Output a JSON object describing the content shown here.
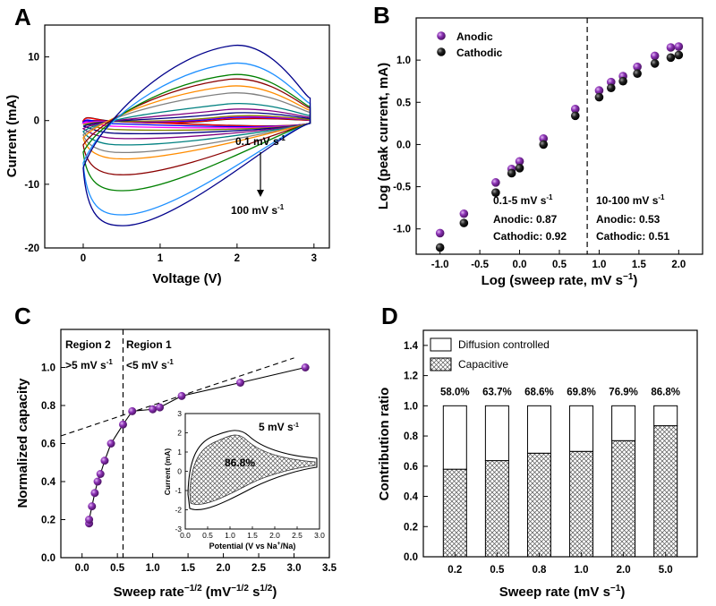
{
  "panels": {
    "A": {
      "letter": "A",
      "xlabel": "Voltage (V)",
      "ylabel": "Current (mA)",
      "annotation_top": "0.1 mV s",
      "annotation_top_sup": "-1",
      "annotation_bottom": "100 mV s",
      "annotation_bottom_sup": "-1"
    },
    "B": {
      "letter": "B",
      "xlabel": "Log (sweep rate, mV s",
      "xlabel_sup": "−1",
      "xlabel_end": ")",
      "ylabel": "Log (peak current, mA)",
      "legend_anodic": "Anodic",
      "legend_cathodic": "Cathodic",
      "note_left_title": "0.1-5 mV s",
      "note_left_title_sup": "-1",
      "note_left_anodic": "Anodic: 0.87",
      "note_left_cathodic": "Cathodic: 0.92",
      "note_right_title": "10-100 mV s",
      "note_right_title_sup": "-1",
      "note_right_anodic": "Anodic: 0.53",
      "note_right_cathodic": "Cathodic: 0.51"
    },
    "C": {
      "letter": "C",
      "xlabel": "Sweep rate",
      "xlabel_sup": "−1/2",
      "xlabel_unit": " (mV",
      "xlabel_unit_sup": "−1/2",
      "xlabel_unit2": " s",
      "xlabel_unit2_sup": "1/2",
      "xlabel_end": ")",
      "ylabel": "Normalized capacity",
      "region2_title": "Region 2",
      "region2_text": ">5 mV s",
      "region2_sup": "-1",
      "region1_title": "Region 1",
      "region1_text": "<5 mV s",
      "region1_sup": "-1",
      "inset_xlabel": "Potential (V vs Na",
      "inset_xlabel_sup": "+",
      "inset_xlabel_end": "/Na)",
      "inset_ylabel": "Current (mA)",
      "inset_rate": "5 mV s",
      "inset_rate_sup": "-1",
      "inset_percent": "86.8%"
    },
    "D": {
      "letter": "D",
      "xlabel": "Sweep rate (mV s",
      "xlabel_sup": "−1",
      "xlabel_end": ")",
      "ylabel": "Contribution ratio",
      "legend_diffusion": "Diffusion controlled",
      "legend_capacitive": "Capacitive"
    }
  },
  "colors": {
    "purple_marker": "#7b2a9e",
    "black_marker": "#111111",
    "hatch": "#555555"
  },
  "chart_data": [
    {
      "panel": "A",
      "type": "line",
      "xlim": [
        -0.5,
        3.2
      ],
      "ylim": [
        -20,
        15
      ],
      "xticks": [
        0,
        1,
        2,
        3
      ],
      "yticks": [
        -20,
        -10,
        0,
        10
      ],
      "series_colors": [
        "#000000",
        "#ff0000",
        "#0000ff",
        "#ff00ff",
        "#808000",
        "#000080",
        "#800080",
        "#008080",
        "#808080",
        "#ff8c00",
        "#8b0000",
        "#008000",
        "#1e90ff",
        "#00008b"
      ],
      "peak_anodic_mA": [
        0.09,
        0.15,
        0.35,
        0.5,
        0.6,
        1.1,
        1.7,
        2.6,
        4.3,
        5.4,
        6.5,
        7.2,
        9.0,
        11.8
      ],
      "peak_cathodic_mA": [
        -0.06,
        -0.12,
        -0.5,
        -0.9,
        -1.4,
        -2.0,
        -2.8,
        -3.8,
        -5.0,
        -6.0,
        -8.5,
        -11.0,
        -14.8,
        -16.5
      ]
    },
    {
      "panel": "B",
      "type": "scatter",
      "xlim": [
        -1.3,
        2.3
      ],
      "ylim": [
        -1.3,
        1.5
      ],
      "xticks": [
        -1.0,
        -0.5,
        0.0,
        0.5,
        1.0,
        1.5,
        2.0
      ],
      "yticks": [
        -1.0,
        -0.5,
        0.0,
        0.5,
        1.0
      ],
      "divider_x": 0.85,
      "series": [
        {
          "name": "Anodic",
          "x": [
            -1.0,
            -0.7,
            -0.3,
            -0.1,
            0.0,
            0.3,
            0.7,
            1.0,
            1.15,
            1.3,
            1.48,
            1.7,
            1.9,
            2.0
          ],
          "y": [
            -1.05,
            -0.82,
            -0.45,
            -0.29,
            -0.2,
            0.07,
            0.42,
            0.64,
            0.74,
            0.81,
            0.92,
            1.05,
            1.15,
            1.16
          ]
        },
        {
          "name": "Cathodic",
          "x": [
            -1.0,
            -0.7,
            -0.3,
            -0.1,
            0.0,
            0.3,
            0.7,
            1.0,
            1.15,
            1.3,
            1.48,
            1.7,
            1.9,
            2.0
          ],
          "y": [
            -1.22,
            -0.93,
            -0.57,
            -0.34,
            -0.28,
            0.0,
            0.34,
            0.56,
            0.67,
            0.75,
            0.84,
            0.96,
            1.03,
            1.06
          ]
        }
      ]
    },
    {
      "panel": "C",
      "type": "scatter",
      "xlim": [
        -0.3,
        3.5
      ],
      "ylim": [
        0.0,
        1.2
      ],
      "xticks": [
        0.0,
        0.5,
        1.0,
        1.5,
        2.0,
        2.5,
        3.0,
        3.5
      ],
      "yticks": [
        0.0,
        0.2,
        0.4,
        0.6,
        0.8,
        1.0
      ],
      "divider_x": 0.58,
      "x": [
        0.1,
        0.1,
        0.14,
        0.18,
        0.22,
        0.26,
        0.32,
        0.41,
        0.58,
        0.71,
        1.0,
        1.1,
        1.41,
        2.24,
        3.16
      ],
      "y": [
        0.18,
        0.2,
        0.27,
        0.34,
        0.4,
        0.44,
        0.51,
        0.6,
        0.7,
        0.77,
        0.78,
        0.79,
        0.85,
        0.92,
        1.0
      ],
      "trend_line": {
        "x": [
          -0.3,
          3.0
        ],
        "y": [
          0.64,
          1.05
        ]
      },
      "inset": {
        "type": "area",
        "xlim": [
          0.0,
          3.0
        ],
        "ylim": [
          -3,
          3
        ],
        "xticks": [
          0.0,
          0.5,
          1.0,
          1.5,
          2.0,
          2.5,
          3.0
        ],
        "yticks": [
          -3,
          -2,
          -1,
          0,
          1,
          2,
          3
        ],
        "capacitive_fraction": 0.868
      }
    },
    {
      "panel": "D",
      "type": "bar",
      "categories": [
        "0.2",
        "0.5",
        "0.8",
        "1.0",
        "2.0",
        "5.0"
      ],
      "series": [
        {
          "name": "Capacitive",
          "values": [
            0.58,
            0.637,
            0.686,
            0.698,
            0.769,
            0.868
          ]
        },
        {
          "name": "Diffusion controlled",
          "values": [
            0.42,
            0.363,
            0.314,
            0.302,
            0.231,
            0.132
          ]
        }
      ],
      "labels": [
        "58.0%",
        "63.7%",
        "68.6%",
        "69.8%",
        "76.9%",
        "86.8%"
      ],
      "ylim": [
        0.0,
        1.5
      ],
      "yticks": [
        0.0,
        0.2,
        0.4,
        0.6,
        0.8,
        1.0,
        1.2,
        1.4
      ]
    }
  ]
}
